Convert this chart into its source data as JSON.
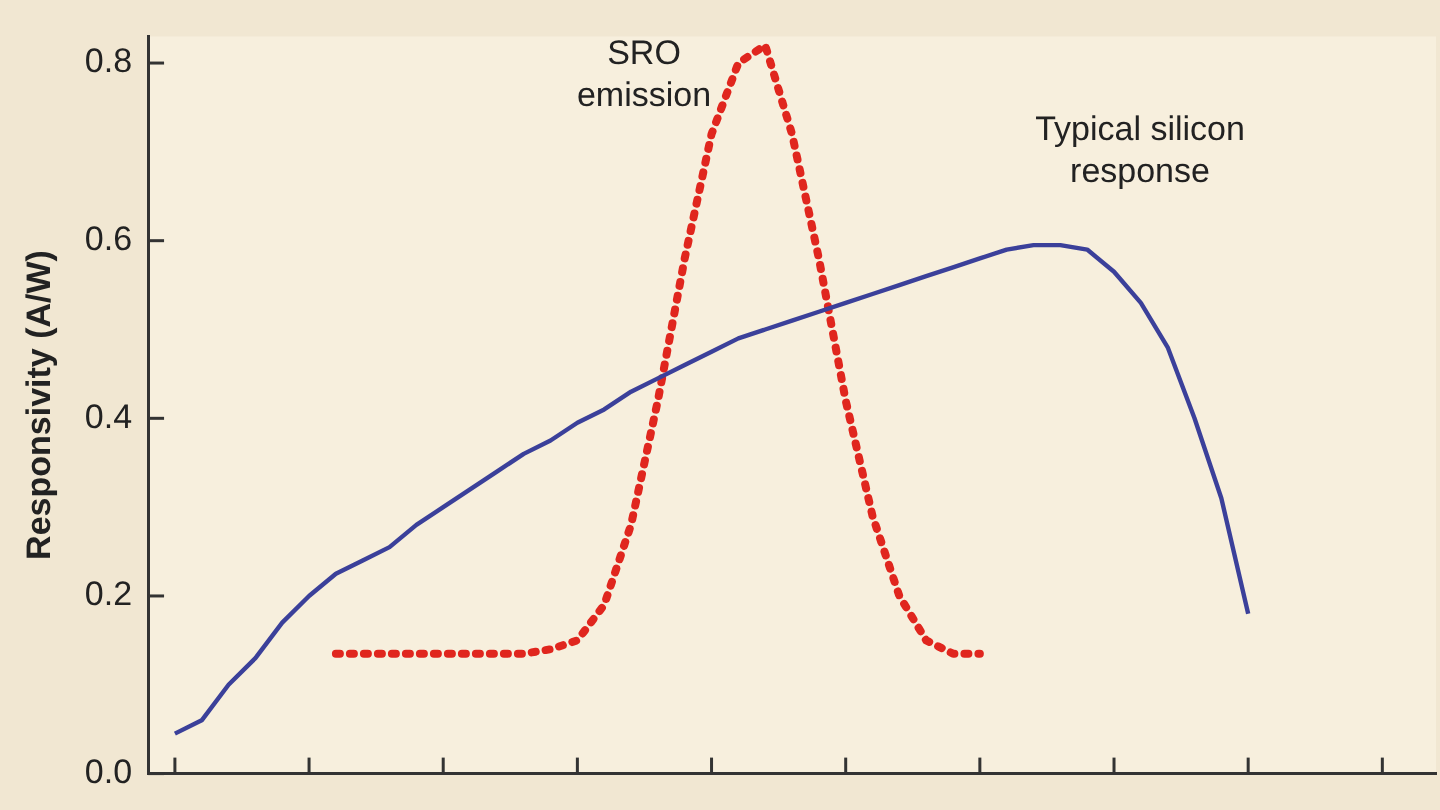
{
  "chart_data": {
    "type": "line",
    "ylabel": "Responsivity (A/W)",
    "categories": [
      null,
      null,
      null,
      null,
      null,
      null,
      null,
      null,
      null,
      null,
      null,
      null,
      null,
      null,
      null,
      null,
      null,
      null,
      null,
      null,
      null,
      null,
      null,
      null,
      null,
      null,
      null,
      null,
      null,
      null,
      null,
      null,
      null,
      null,
      null,
      null,
      null,
      null,
      null,
      null,
      null,
      null,
      null,
      null,
      null,
      null,
      null,
      null,
      null
    ],
    "series": [
      {
        "color": "#3b409a",
        "line_style": "solid",
        "values": [
          null,
          0.045,
          0.06,
          0.1,
          0.13,
          0.17,
          0.2,
          0.225,
          0.24,
          0.255,
          0.28,
          0.3,
          0.32,
          0.34,
          0.36,
          0.375,
          0.395,
          0.41,
          0.43,
          0.445,
          0.46,
          0.475,
          0.49,
          0.5,
          0.51,
          0.52,
          0.53,
          0.54,
          0.55,
          0.56,
          0.57,
          0.58,
          0.59,
          0.595,
          0.595,
          0.59,
          0.565,
          0.53,
          0.48,
          0.4,
          0.31,
          0.18,
          null,
          null,
          null,
          null,
          null,
          null,
          null
        ]
      },
      {
        "color": "#e0261e",
        "line_style": "dotted",
        "values": [
          null,
          null,
          null,
          null,
          null,
          null,
          null,
          0.135,
          0.135,
          0.135,
          0.135,
          0.135,
          0.135,
          0.135,
          0.135,
          0.14,
          0.15,
          0.19,
          0.28,
          0.42,
          0.58,
          0.72,
          0.8,
          0.82,
          0.72,
          0.58,
          0.42,
          0.29,
          0.2,
          0.15,
          0.135,
          0.135,
          null,
          null,
          null,
          null,
          null,
          null,
          null,
          null,
          null,
          null,
          null,
          null,
          null,
          null,
          null,
          null,
          null
        ]
      }
    ],
    "ylim": [
      0,
      0.83
    ],
    "yticks": [
      {
        "value": 0,
        "label": "0.0"
      },
      {
        "value": 0.2,
        "label": "0.2"
      },
      {
        "value": 0.4,
        "label": "0.4"
      },
      {
        "value": 0.6,
        "label": "0.6"
      },
      {
        "value": 0.8,
        "label": "0.8"
      }
    ],
    "tick_labels": "y",
    "grid": false,
    "legend": false,
    "marker": "none",
    "annotations": [
      "SRO emission",
      "Typical silicon response"
    ]
  }
}
